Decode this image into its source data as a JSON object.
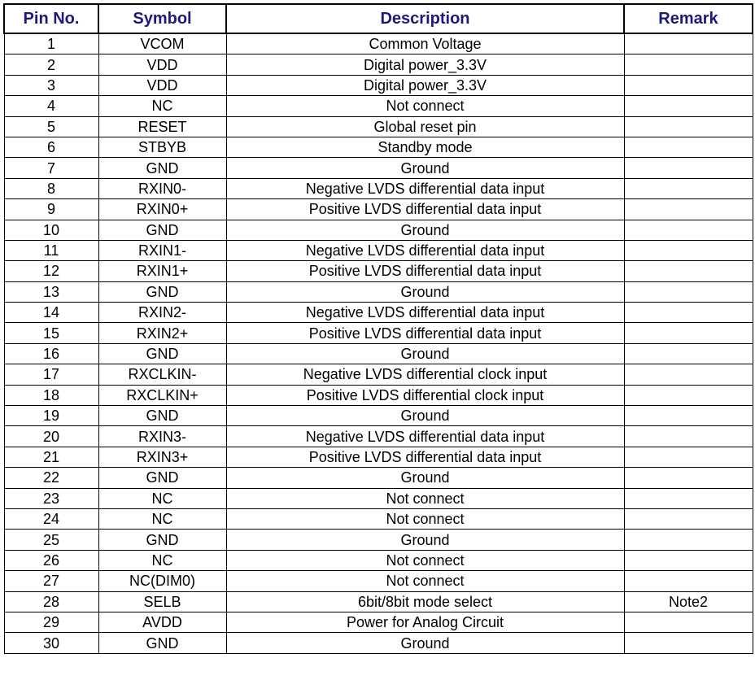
{
  "header_color": "#1a1a7a",
  "columns": [
    "Pin No.",
    "Symbol",
    "Description",
    "Remark"
  ],
  "rows": [
    {
      "pin": "1",
      "symbol": "VCOM",
      "description": "Common  Voltage",
      "remark": ""
    },
    {
      "pin": "2",
      "symbol": "VDD",
      "description": "Digital power_3.3V",
      "remark": ""
    },
    {
      "pin": "3",
      "symbol": "VDD",
      "description": "Digital power_3.3V",
      "remark": ""
    },
    {
      "pin": "4",
      "symbol": "NC",
      "description": "Not connect",
      "remark": ""
    },
    {
      "pin": "5",
      "symbol": "RESET",
      "description": "Global reset pin",
      "remark": ""
    },
    {
      "pin": "6",
      "symbol": "STBYB",
      "description": "Standby mode",
      "remark": ""
    },
    {
      "pin": "7",
      "symbol": "GND",
      "description": "Ground",
      "remark": ""
    },
    {
      "pin": "8",
      "symbol": "RXIN0-",
      "description": "Negative LVDS differential data input",
      "remark": ""
    },
    {
      "pin": "9",
      "symbol": "RXIN0+",
      "description": "Positive LVDS differential data input",
      "remark": ""
    },
    {
      "pin": "10",
      "symbol": "GND",
      "description": "Ground",
      "remark": ""
    },
    {
      "pin": "11",
      "symbol": "RXIN1-",
      "description": "Negative LVDS differential data input",
      "remark": ""
    },
    {
      "pin": "12",
      "symbol": "RXIN1+",
      "description": "Positive LVDS differential data input",
      "remark": ""
    },
    {
      "pin": "13",
      "symbol": "GND",
      "description": "Ground",
      "remark": ""
    },
    {
      "pin": "14",
      "symbol": "RXIN2-",
      "description": "Negative LVDS differential data input",
      "remark": ""
    },
    {
      "pin": "15",
      "symbol": "RXIN2+",
      "description": "Positive LVDS differential data input",
      "remark": ""
    },
    {
      "pin": "16",
      "symbol": "GND",
      "description": "Ground",
      "remark": ""
    },
    {
      "pin": "17",
      "symbol": "RXCLKIN-",
      "description": "Negative LVDS differential clock input",
      "remark": ""
    },
    {
      "pin": "18",
      "symbol": "RXCLKIN+",
      "description": "Positive LVDS differential clock input",
      "remark": ""
    },
    {
      "pin": "19",
      "symbol": "GND",
      "description": "Ground",
      "remark": ""
    },
    {
      "pin": "20",
      "symbol": "RXIN3-",
      "description": "Negative LVDS differential data input",
      "remark": ""
    },
    {
      "pin": "21",
      "symbol": "RXIN3+",
      "description": "Positive LVDS differential data input",
      "remark": ""
    },
    {
      "pin": "22",
      "symbol": "GND",
      "description": "Ground",
      "remark": ""
    },
    {
      "pin": "23",
      "symbol": "NC",
      "description": "Not connect",
      "remark": ""
    },
    {
      "pin": "24",
      "symbol": "NC",
      "description": "Not connect",
      "remark": ""
    },
    {
      "pin": "25",
      "symbol": "GND",
      "description": "Ground",
      "remark": ""
    },
    {
      "pin": "26",
      "symbol": "NC",
      "description": "Not connect",
      "remark": ""
    },
    {
      "pin": "27",
      "symbol": "NC(DIM0)",
      "description": "Not connect",
      "remark": ""
    },
    {
      "pin": "28",
      "symbol": "SELB",
      "description": "6bit/8bit mode select",
      "remark": "Note2"
    },
    {
      "pin": "29",
      "symbol": "AVDD",
      "description": "Power for Analog Circuit",
      "remark": ""
    },
    {
      "pin": "30",
      "symbol": "GND",
      "description": "Ground",
      "remark": ""
    }
  ]
}
